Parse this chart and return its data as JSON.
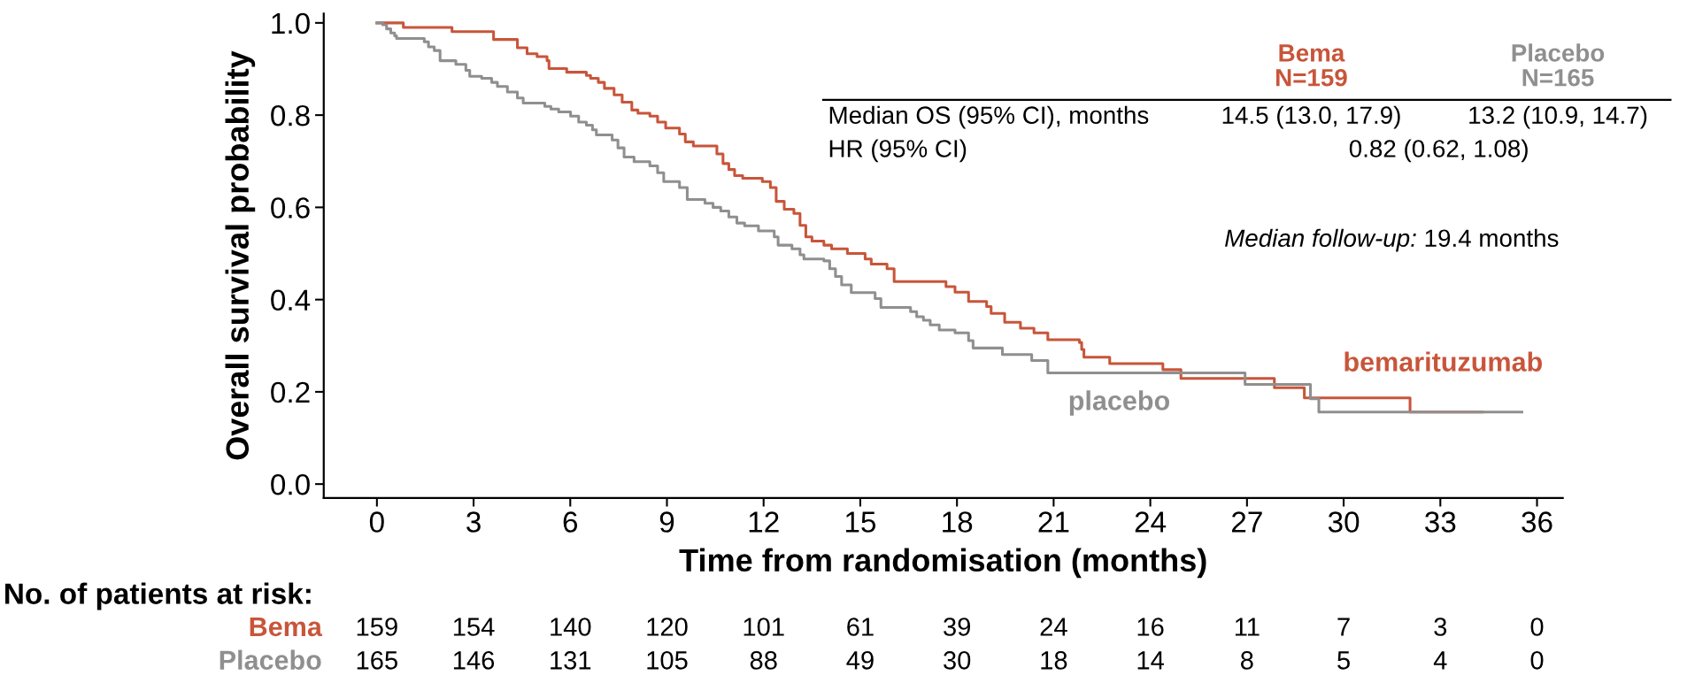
{
  "chart_data": {
    "type": "step",
    "xlabel": "Time from randomisation (months)",
    "ylabel": "Overall survival probability",
    "xlim": [
      -1.65,
      36.8
    ],
    "ylim": [
      -0.03,
      1.02
    ],
    "xticks": [
      0,
      3,
      6,
      9,
      12,
      15,
      18,
      21,
      24,
      27,
      30,
      33,
      36
    ],
    "yticks": [
      {
        "value": 0,
        "label": "0.0"
      },
      {
        "value": 0.2,
        "label": "0.2"
      },
      {
        "value": 0.4,
        "label": "0.4"
      },
      {
        "value": 0.6,
        "label": "0.6"
      },
      {
        "value": 0.8,
        "label": "0.8"
      },
      {
        "value": 1,
        "label": "1.0"
      }
    ],
    "grid": false,
    "legend": false,
    "marker": "none",
    "line_style": "solid",
    "series": [
      {
        "name": "bemarituzumab",
        "color": "#c8553a",
        "x": [
          0,
          0.82,
          2.33,
          3.62,
          4.36,
          4.66,
          4.97,
          5.28,
          5.34,
          5.89,
          6.5,
          6.63,
          6.87,
          7.06,
          7.36,
          7.61,
          7.91,
          8.1,
          8.47,
          8.71,
          8.96,
          9.39,
          9.57,
          9.82,
          10.55,
          10.74,
          10.92,
          11.1,
          11.35,
          11.96,
          12.21,
          12.39,
          12.64,
          12.94,
          13.13,
          13.31,
          13.5,
          13.87,
          14.11,
          14.6,
          15.15,
          15.34,
          15.83,
          16.05,
          17.66,
          17.94,
          18.36,
          18.92,
          19.06,
          19.48,
          19.97,
          20.39,
          20.82,
          21.8,
          21.87,
          21.94,
          22.74,
          24.39,
          24.95,
          27.85,
          28.78,
          32.06,
          34.3
        ],
        "values": [
          1.0,
          0.99,
          0.981,
          0.964,
          0.946,
          0.933,
          0.927,
          0.918,
          0.901,
          0.893,
          0.886,
          0.88,
          0.871,
          0.858,
          0.844,
          0.828,
          0.811,
          0.804,
          0.798,
          0.785,
          0.772,
          0.759,
          0.742,
          0.733,
          0.716,
          0.695,
          0.682,
          0.669,
          0.663,
          0.656,
          0.643,
          0.613,
          0.596,
          0.587,
          0.561,
          0.536,
          0.527,
          0.518,
          0.51,
          0.5,
          0.488,
          0.477,
          0.467,
          0.439,
          0.428,
          0.416,
          0.396,
          0.385,
          0.37,
          0.351,
          0.338,
          0.328,
          0.313,
          0.307,
          0.292,
          0.275,
          0.261,
          0.248,
          0.229,
          0.209,
          0.187,
          0.156,
          0.156
        ]
      },
      {
        "name": "placebo",
        "color": "#8f8f8f",
        "x": [
          0,
          0.18,
          0.3,
          0.43,
          0.55,
          0.61,
          1.47,
          1.6,
          1.78,
          1.96,
          2.45,
          2.76,
          2.88,
          3.25,
          3.56,
          3.74,
          4.05,
          4.36,
          4.54,
          5.21,
          5.4,
          5.64,
          6.01,
          6.26,
          6.5,
          6.69,
          6.81,
          7.3,
          7.48,
          7.67,
          7.98,
          8.47,
          8.71,
          8.9,
          9.39,
          9.63,
          10.18,
          10.43,
          10.67,
          10.92,
          11.17,
          11.41,
          11.84,
          12.33,
          12.45,
          12.88,
          13.13,
          13.25,
          13.87,
          14.05,
          14.23,
          14.42,
          14.72,
          15.46,
          15.64,
          16.56,
          16.75,
          16.96,
          17.17,
          17.45,
          17.94,
          18.36,
          18.5,
          19.41,
          20.32,
          20.82,
          26.94,
          28.97,
          29.23,
          35.53
        ],
        "values": [
          1.0,
          0.996,
          0.987,
          0.978,
          0.972,
          0.966,
          0.959,
          0.948,
          0.94,
          0.918,
          0.91,
          0.897,
          0.884,
          0.88,
          0.871,
          0.862,
          0.85,
          0.837,
          0.826,
          0.819,
          0.813,
          0.807,
          0.798,
          0.785,
          0.778,
          0.768,
          0.757,
          0.746,
          0.729,
          0.709,
          0.699,
          0.69,
          0.675,
          0.656,
          0.643,
          0.617,
          0.609,
          0.6,
          0.592,
          0.579,
          0.566,
          0.56,
          0.549,
          0.536,
          0.518,
          0.51,
          0.497,
          0.488,
          0.484,
          0.467,
          0.45,
          0.432,
          0.415,
          0.402,
          0.383,
          0.374,
          0.363,
          0.355,
          0.345,
          0.334,
          0.328,
          0.311,
          0.295,
          0.281,
          0.268,
          0.241,
          0.216,
          0.185,
          0.156,
          0.156
        ]
      }
    ],
    "annotations": [
      "Bema\nN=159",
      "Placebo\nN=165",
      "Median OS (95% CI), months",
      "14.5 (13.0, 17.9)",
      "13.2 (10.9, 14.7)",
      "HR (95% CI)",
      "0.82 (0.62, 1.08)",
      "Median follow-up:",
      " 19.4 months",
      "No. of patients at risk:",
      "Bema",
      "Placebo",
      "159",
      "154",
      "140",
      "120",
      "101",
      "61",
      "39",
      "24",
      "16",
      "11",
      "7",
      "3",
      "0",
      "165",
      "146",
      "131",
      "105",
      "88",
      "49",
      "30",
      "18",
      "14",
      "8",
      "5",
      "4",
      "0"
    ]
  }
}
